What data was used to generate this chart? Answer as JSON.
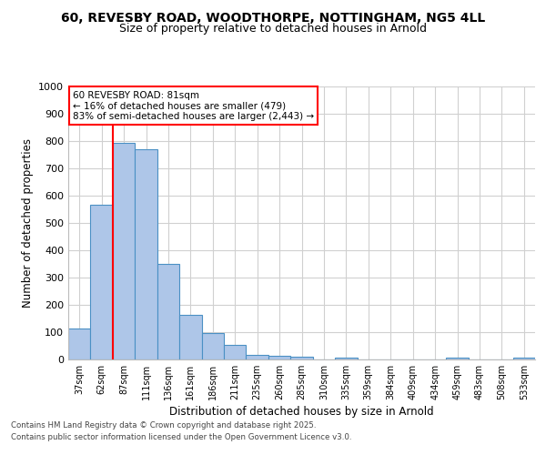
{
  "title_line1": "60, REVESBY ROAD, WOODTHORPE, NOTTINGHAM, NG5 4LL",
  "title_line2": "Size of property relative to detached houses in Arnold",
  "xlabel": "Distribution of detached houses by size in Arnold",
  "ylabel": "Number of detached properties",
  "categories": [
    "37sqm",
    "62sqm",
    "87sqm",
    "111sqm",
    "136sqm",
    "161sqm",
    "186sqm",
    "211sqm",
    "235sqm",
    "260sqm",
    "285sqm",
    "310sqm",
    "335sqm",
    "359sqm",
    "384sqm",
    "409sqm",
    "434sqm",
    "459sqm",
    "483sqm",
    "508sqm",
    "533sqm"
  ],
  "values": [
    112,
    567,
    793,
    770,
    350,
    165,
    97,
    52,
    17,
    12,
    11,
    0,
    8,
    0,
    0,
    0,
    0,
    8,
    0,
    0,
    8
  ],
  "bar_color": "#aec6e8",
  "bar_edge_color": "#4a90c4",
  "red_line_x": 1.5,
  "annotation_text": "60 REVESBY ROAD: 81sqm\n← 16% of detached houses are smaller (479)\n83% of semi-detached houses are larger (2,443) →",
  "annotation_box_color": "white",
  "annotation_box_edge_color": "red",
  "red_line_color": "red",
  "ylim": [
    0,
    1000
  ],
  "yticks": [
    0,
    100,
    200,
    300,
    400,
    500,
    600,
    700,
    800,
    900,
    1000
  ],
  "background_color": "white",
  "grid_color": "#d0d0d0",
  "footer_line1": "Contains HM Land Registry data © Crown copyright and database right 2025.",
  "footer_line2": "Contains public sector information licensed under the Open Government Licence v3.0."
}
